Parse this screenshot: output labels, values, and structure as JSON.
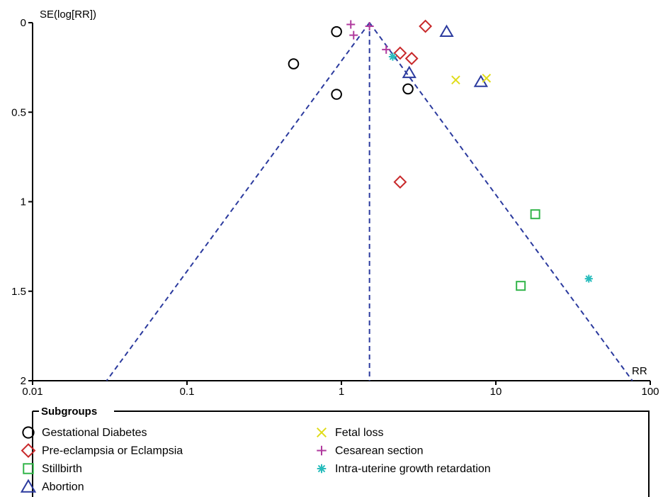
{
  "chart_data": {
    "type": "scatter",
    "xlabel": "RR",
    "ylabel": "SE(log[RR])",
    "x_scale": "log",
    "xlim": [
      0.01,
      100
    ],
    "ylim": [
      0,
      2
    ],
    "y_inverted": true,
    "x_ticks": [
      "0.01",
      "0.1",
      "1",
      "10",
      "100"
    ],
    "y_ticks": [
      "0",
      "0.5",
      "1",
      "1.5",
      "2"
    ],
    "pooled_rr": 1.52,
    "funnel_limits": "95% pseudo-confidence limits",
    "grid": false,
    "legend_title": "Subgroups",
    "legend_placement": "bottom",
    "series": [
      {
        "name": "Gestational Diabetes",
        "marker": "circle",
        "color": "#000000",
        "points": [
          {
            "x": 0.93,
            "y": 0.05
          },
          {
            "x": 0.49,
            "y": 0.23
          },
          {
            "x": 0.93,
            "y": 0.4
          },
          {
            "x": 2.7,
            "y": 0.37
          }
        ]
      },
      {
        "name": "Pre-eclampsia or Eclampsia",
        "marker": "diamond",
        "color": "#c8282a",
        "points": [
          {
            "x": 3.5,
            "y": 0.02
          },
          {
            "x": 2.4,
            "y": 0.17
          },
          {
            "x": 2.85,
            "y": 0.2
          },
          {
            "x": 2.4,
            "y": 0.89
          }
        ]
      },
      {
        "name": "Stillbirth",
        "marker": "square",
        "color": "#33b54a",
        "points": [
          {
            "x": 18.0,
            "y": 1.07
          },
          {
            "x": 14.5,
            "y": 1.47
          }
        ]
      },
      {
        "name": "Abortion",
        "marker": "triangle",
        "color": "#2b3a9e",
        "points": [
          {
            "x": 4.8,
            "y": 0.05
          },
          {
            "x": 2.75,
            "y": 0.28
          },
          {
            "x": 8.0,
            "y": 0.33
          }
        ]
      },
      {
        "name": "Fetal loss",
        "marker": "x",
        "color": "#e0dc1a",
        "points": [
          {
            "x": 5.5,
            "y": 0.32
          },
          {
            "x": 8.7,
            "y": 0.31
          }
        ]
      },
      {
        "name": "Cesarean section",
        "marker": "plus",
        "color": "#b03a9e",
        "points": [
          {
            "x": 1.15,
            "y": 0.01
          },
          {
            "x": 1.2,
            "y": 0.07
          },
          {
            "x": 1.52,
            "y": 0.02
          },
          {
            "x": 1.95,
            "y": 0.15
          }
        ]
      },
      {
        "name": "Intra-uterine growth retardation",
        "marker": "asterisk",
        "color": "#27bcbc",
        "points": [
          {
            "x": 2.15,
            "y": 0.19
          },
          {
            "x": 40.0,
            "y": 1.43
          }
        ]
      }
    ]
  }
}
